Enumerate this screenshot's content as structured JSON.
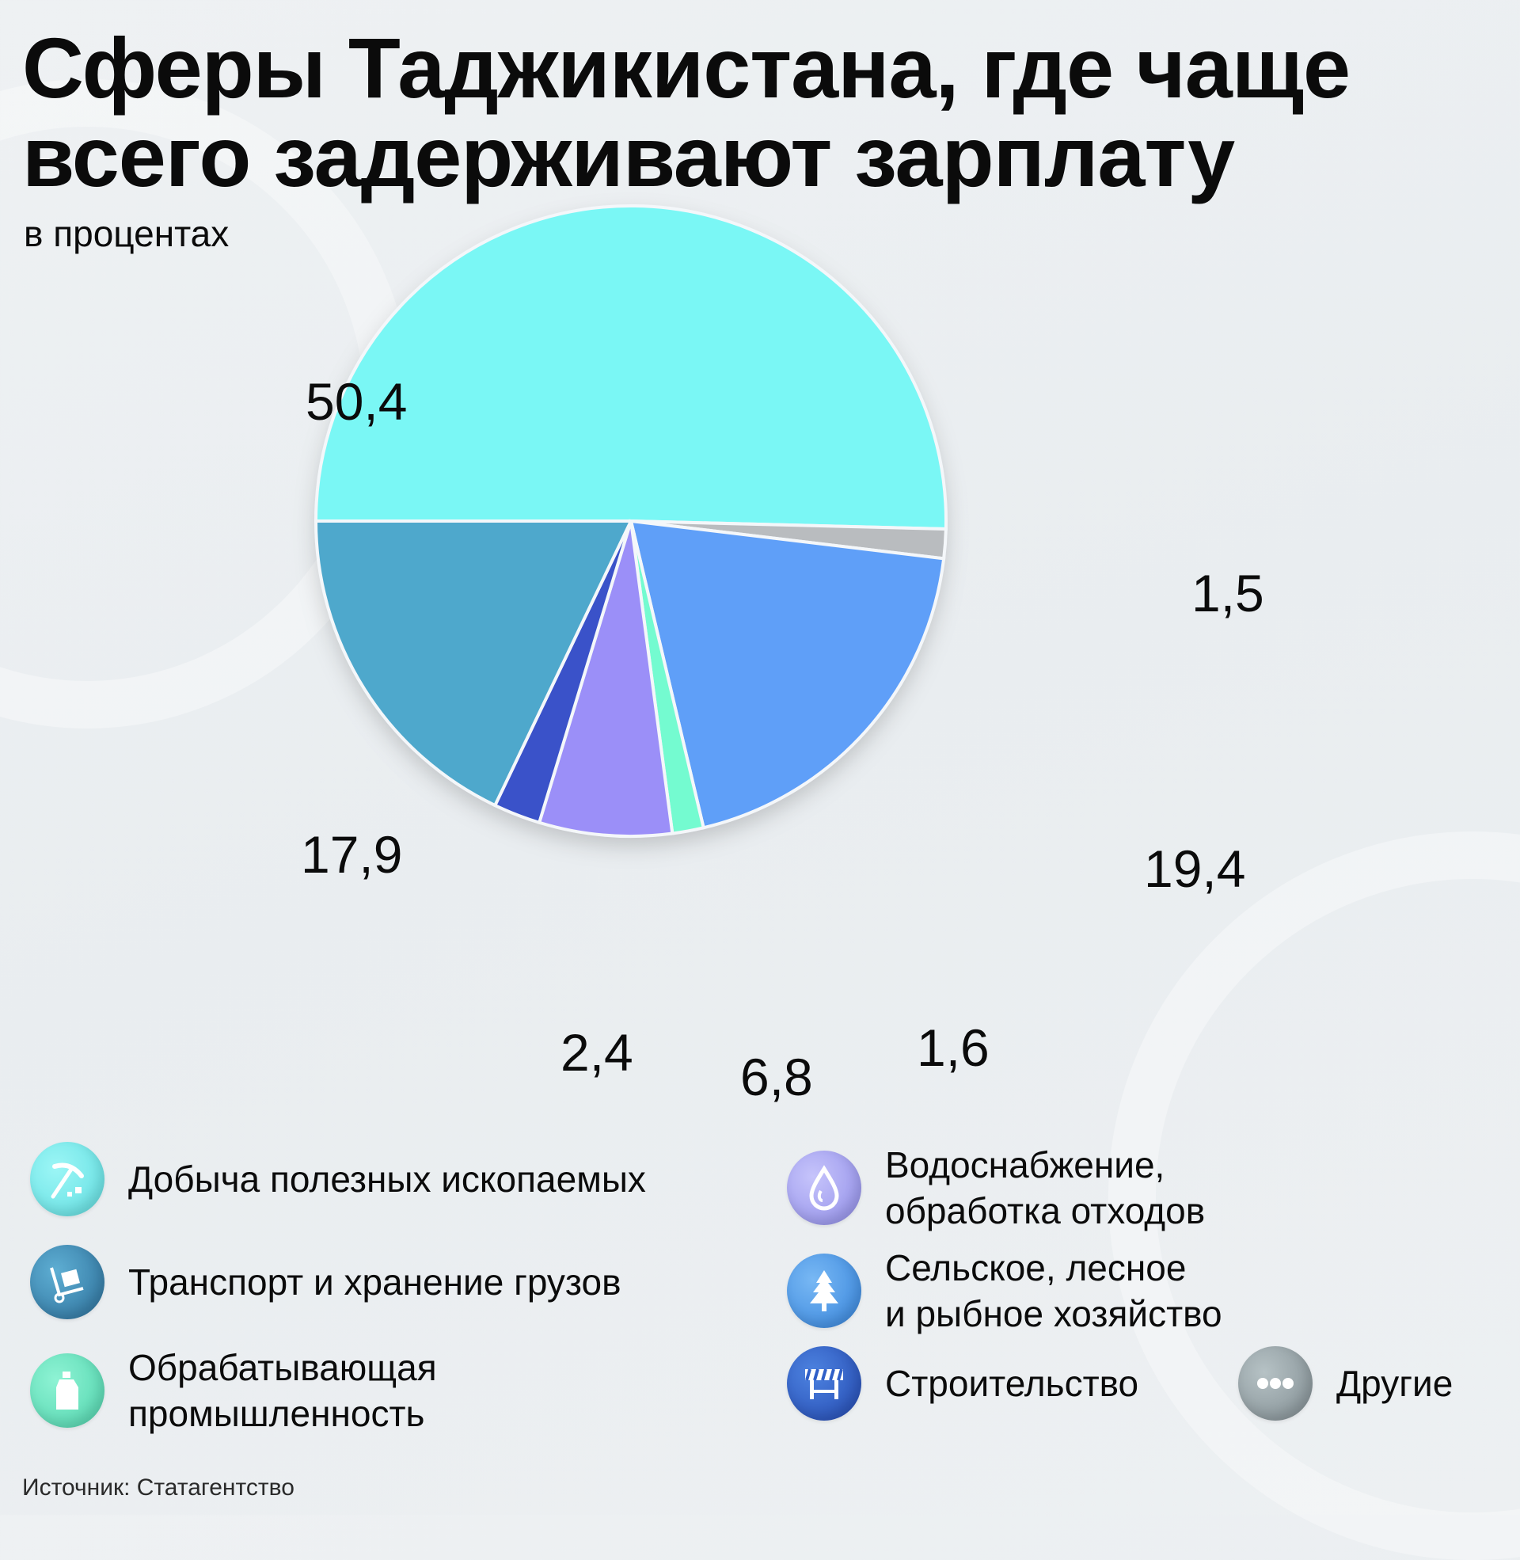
{
  "title": {
    "line1": "Сферы Таджикистана, где чаще",
    "line2": "всего задерживают зарплату"
  },
  "subtitle": "в процентах",
  "source": "Источник: Статагентство",
  "chart_data": {
    "type": "pie",
    "title": "Сферы Таджикистана, где чаще всего задерживают зарплату",
    "subtitle": "в процентах",
    "unit": "%",
    "slices": [
      {
        "label": "Добыча полезных ископаемых",
        "value": 50.4,
        "display": "50,4",
        "color": "#7af7f5"
      },
      {
        "label": "Другие",
        "value": 1.5,
        "display": "1,5",
        "color": "#b9bcbf"
      },
      {
        "label": "Сельское, лесное и рыбное хозяйство",
        "value": 19.4,
        "display": "19,4",
        "color": "#5f9ff8"
      },
      {
        "label": "Обрабатывающая промышленность",
        "value": 1.6,
        "display": "1,6",
        "color": "#74fbd0"
      },
      {
        "label": "Водоснабжение, обработка отходов",
        "value": 6.8,
        "display": "6,8",
        "color": "#9b8ff8"
      },
      {
        "label": "Строительство",
        "value": 2.4,
        "display": "2,4",
        "color": "#3a52c9"
      },
      {
        "label": "Транспорт и хранение грузов",
        "value": 17.9,
        "display": "17,9",
        "color": "#4ea8cc"
      }
    ],
    "legend_position": "bottom"
  },
  "labels": {
    "mining": "50,4",
    "other": "1,5",
    "agri": "19,4",
    "manuf": "1,6",
    "water": "6,8",
    "constr": "2,4",
    "transport": "17,9"
  },
  "legend": [
    {
      "label": "Добыча полезных ископаемых",
      "icon": "pickaxe-icon",
      "color": "#6fe9ea"
    },
    {
      "label": "Транспорт и хранение грузов",
      "icon": "cart-icon",
      "color": "#3a89b4"
    },
    {
      "label": "Обрабатывающая\nпромышленность",
      "icon": "bottle-icon",
      "color": "#66e3be"
    },
    {
      "label": "Водоснабжение,\nобработка отходов",
      "icon": "water-drop-icon",
      "color": "#a9a6f3"
    },
    {
      "label": "Сельское, лесное\nи рыбное хозяйство",
      "icon": "tree-icon",
      "color": "#4d9ae8"
    },
    {
      "label": "Строительство",
      "icon": "barrier-icon",
      "color": "#2f5fc8"
    },
    {
      "label": "Другие",
      "icon": "dots-icon",
      "color": "#8e9a9e"
    }
  ]
}
